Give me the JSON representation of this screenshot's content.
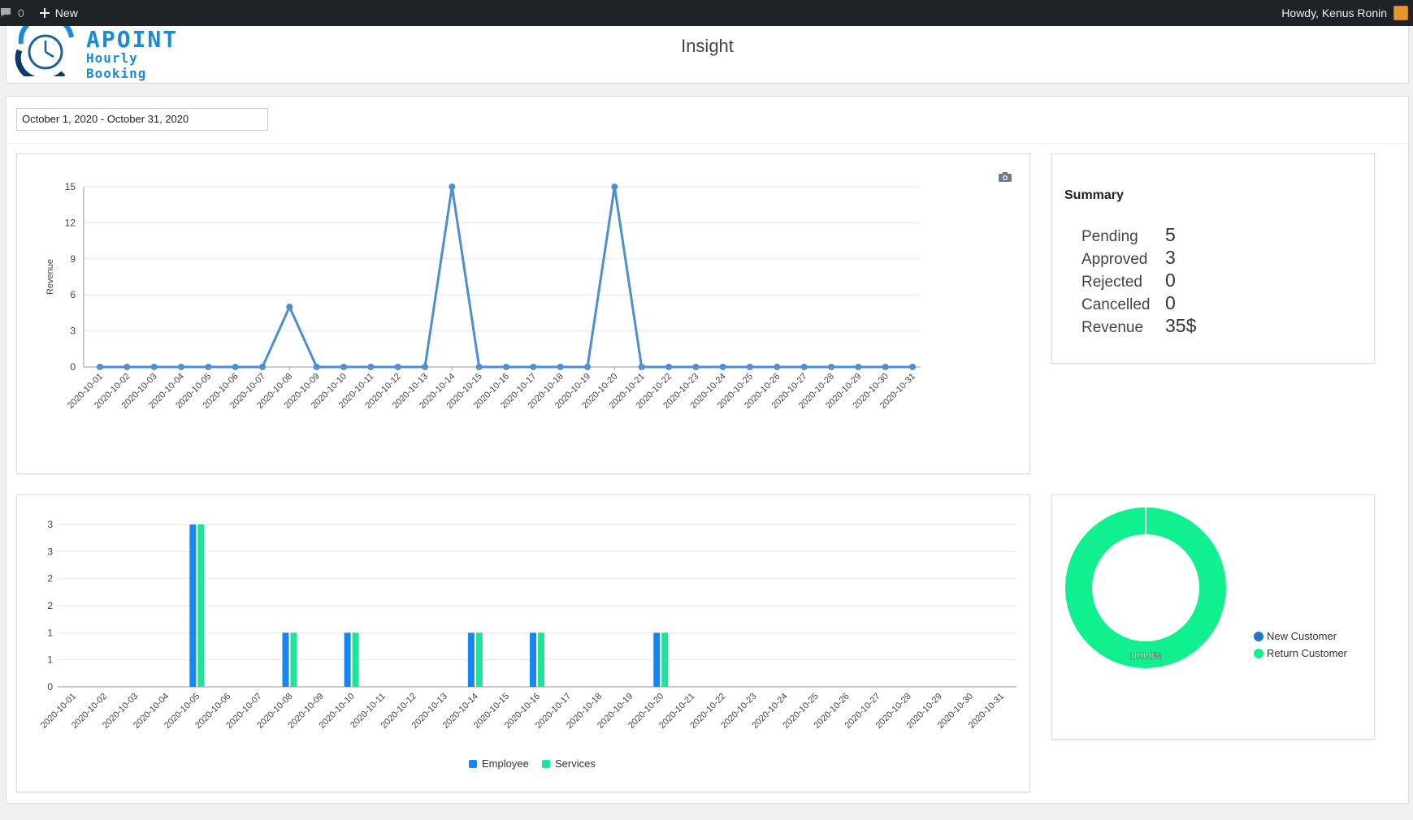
{
  "adminbar": {
    "comments_count": "0",
    "new_label": "New",
    "howdy": "Howdy, Kenus Ronin"
  },
  "header": {
    "brand": "APOINT",
    "tagline": "Hourly Booking",
    "title": "Insight"
  },
  "filters": {
    "date_range": "October 1, 2020 - October 31, 2020"
  },
  "summary": {
    "title": "Summary",
    "rows": [
      {
        "label": "Pending",
        "value": "5"
      },
      {
        "label": "Approved",
        "value": "3"
      },
      {
        "label": "Rejected",
        "value": "0"
      },
      {
        "label": "Cancelled",
        "value": "0"
      },
      {
        "label": "Revenue",
        "value": "35$"
      }
    ]
  },
  "colors": {
    "line": "#4a90d0",
    "employee": "#1587f2",
    "services": "#1ee39a",
    "new_customer": "#1f77c9",
    "return_customer": "#11f08e"
  },
  "chart_data": [
    {
      "type": "line",
      "ylabel": "Revenue",
      "xlabel": "",
      "ylim": [
        0,
        15
      ],
      "yticks": [
        "0",
        "3",
        "6",
        "9",
        "12",
        "15"
      ],
      "grid": true,
      "categories": [
        "2020-10-01",
        "2020-10-02",
        "2020-10-03",
        "2020-10-04",
        "2020-10-05",
        "2020-10-06",
        "2020-10-07",
        "2020-10-08",
        "2020-10-09",
        "2020-10-10",
        "2020-10-11",
        "2020-10-12",
        "2020-10-13",
        "2020-10-14",
        "2020-10-15",
        "2020-10-16",
        "2020-10-17",
        "2020-10-18",
        "2020-10-19",
        "2020-10-20",
        "2020-10-21",
        "2020-10-22",
        "2020-10-23",
        "2020-10-24",
        "2020-10-25",
        "2020-10-26",
        "2020-10-27",
        "2020-10-28",
        "2020-10-29",
        "2020-10-30",
        "2020-10-31"
      ],
      "values": [
        0,
        0,
        0,
        0,
        0,
        0,
        0,
        5,
        0,
        0,
        0,
        0,
        0,
        15,
        0,
        0,
        0,
        0,
        0,
        15,
        0,
        0,
        0,
        0,
        0,
        0,
        0,
        0,
        0,
        0,
        0
      ]
    },
    {
      "type": "bar",
      "ylim": [
        0,
        3
      ],
      "yticks": [
        "0",
        "1",
        "1",
        "2",
        "2",
        "3",
        "3"
      ],
      "grid": true,
      "legend": "bottom",
      "categories": [
        "2020-10-01",
        "2020-10-02",
        "2020-10-03",
        "2020-10-04",
        "2020-10-05",
        "2020-10-06",
        "2020-10-07",
        "2020-10-08",
        "2020-10-09",
        "2020-10-10",
        "2020-10-11",
        "2020-10-12",
        "2020-10-13",
        "2020-10-14",
        "2020-10-15",
        "2020-10-16",
        "2020-10-17",
        "2020-10-18",
        "2020-10-19",
        "2020-10-20",
        "2020-10-21",
        "2020-10-22",
        "2020-10-23",
        "2020-10-24",
        "2020-10-25",
        "2020-10-26",
        "2020-10-27",
        "2020-10-28",
        "2020-10-29",
        "2020-10-30",
        "2020-10-31"
      ],
      "series": [
        {
          "name": "Employee",
          "values": [
            0,
            0,
            0,
            0,
            3,
            0,
            0,
            1,
            0,
            1,
            0,
            0,
            0,
            1,
            0,
            1,
            0,
            0,
            0,
            1,
            0,
            0,
            0,
            0,
            0,
            0,
            0,
            0,
            0,
            0,
            0
          ]
        },
        {
          "name": "Services",
          "values": [
            0,
            0,
            0,
            0,
            3,
            0,
            0,
            1,
            0,
            1,
            0,
            0,
            0,
            1,
            0,
            1,
            0,
            0,
            0,
            1,
            0,
            0,
            0,
            0,
            0,
            0,
            0,
            0,
            0,
            0,
            0
          ]
        }
      ]
    },
    {
      "type": "pie",
      "legend": "right",
      "slices": [
        {
          "name": "New Customer",
          "value": 0
        },
        {
          "name": "Return Customer",
          "value": 100
        }
      ],
      "data_label": "100.0%"
    }
  ]
}
